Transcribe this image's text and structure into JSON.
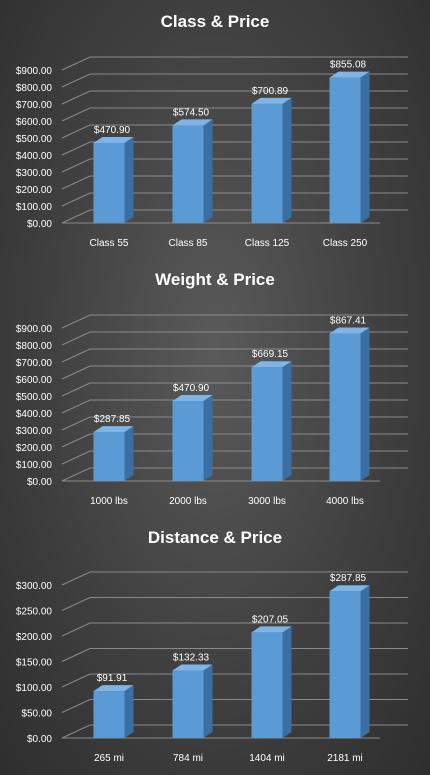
{
  "colors": {
    "bar_front": "#5b9bd5",
    "bar_side": "#3a6fa3",
    "bar_top": "#7fb4e6",
    "gridline": "#8a8a8a",
    "text": "#ffffff"
  },
  "chart_data": [
    {
      "type": "bar",
      "title": "Class & Price",
      "categories": [
        "Class 55",
        "Class 85",
        "Class 125",
        "Class 250"
      ],
      "values": [
        470.9,
        574.5,
        700.89,
        855.08
      ],
      "data_labels": [
        "$470.90",
        "$574.50",
        "$700.89",
        "$855.08"
      ],
      "yticks": [
        "$0.00",
        "$100.00",
        "$200.00",
        "$300.00",
        "$400.00",
        "$500.00",
        "$600.00",
        "$700.00",
        "$800.00",
        "$900.00"
      ],
      "ylim": [
        0,
        900
      ],
      "grid": true,
      "style": "3d-column"
    },
    {
      "type": "bar",
      "title": "Weight & Price",
      "categories": [
        "1000 lbs",
        "2000 lbs",
        "3000 lbs",
        "4000 lbs"
      ],
      "values": [
        287.85,
        470.9,
        669.15,
        867.41
      ],
      "data_labels": [
        "$287.85",
        "$470.90",
        "$669.15",
        "$867.41"
      ],
      "yticks": [
        "$0.00",
        "$100.00",
        "$200.00",
        "$300.00",
        "$400.00",
        "$500.00",
        "$600.00",
        "$700.00",
        "$800.00",
        "$900.00"
      ],
      "ylim": [
        0,
        900
      ],
      "grid": true,
      "style": "3d-column"
    },
    {
      "type": "bar",
      "title": "Distance & Price",
      "categories": [
        "265 mi",
        "784 mi",
        "1404 mi",
        "2181 mi"
      ],
      "values": [
        91.91,
        132.33,
        207.05,
        287.85
      ],
      "data_labels": [
        "$91.91",
        "$132.33",
        "$207.05",
        "$287.85"
      ],
      "yticks": [
        "$0.00",
        "$50.00",
        "$100.00",
        "$150.00",
        "$200.00",
        "$250.00",
        "$300.00"
      ],
      "ylim": [
        0,
        300
      ],
      "grid": true,
      "style": "3d-column"
    }
  ]
}
